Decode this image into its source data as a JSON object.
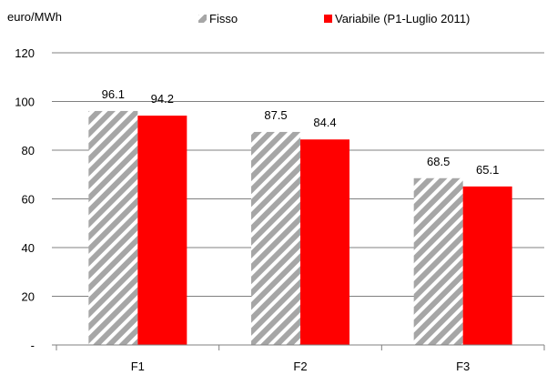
{
  "chart_data": {
    "type": "bar",
    "ylabel": "euro/MWh",
    "ylim": [
      0,
      120
    ],
    "y_ticks": [
      {
        "value": 0,
        "label": "-"
      },
      {
        "value": 20,
        "label": "20"
      },
      {
        "value": 40,
        "label": "40"
      },
      {
        "value": 60,
        "label": "60"
      },
      {
        "value": 80,
        "label": "80"
      },
      {
        "value": 100,
        "label": "100"
      },
      {
        "value": 120,
        "label": "120"
      }
    ],
    "categories": [
      "F1",
      "F2",
      "F3"
    ],
    "series": [
      {
        "name": "Fisso",
        "values": [
          96.1,
          87.5,
          68.5
        ],
        "labels": [
          "96.1",
          "87.5",
          "68.5"
        ],
        "style": "hatched",
        "color": "#a6a6a6"
      },
      {
        "name": "Variabile (P1-Luglio 2011)",
        "values": [
          94.2,
          84.4,
          65.1
        ],
        "labels": [
          "94.2",
          "84.4",
          "65.1"
        ],
        "style": "solid",
        "color": "#ff0000"
      }
    ],
    "legend_position": "top",
    "grid": true,
    "grid_color": "#808080"
  }
}
